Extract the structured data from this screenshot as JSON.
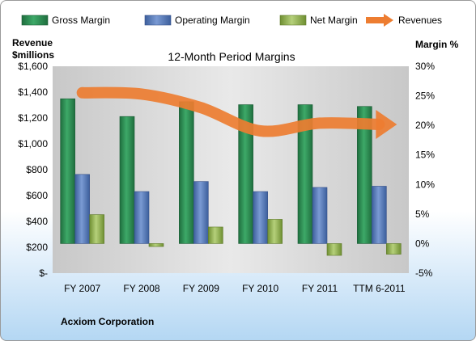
{
  "company": "Acxiom Corporation",
  "chart_data": {
    "type": "bar",
    "title": "12-Month Period Margins",
    "ylabel_left": "Revenue $millions",
    "ylabel_right": "Margin %",
    "categories": [
      "FY 2007",
      "FY 2008",
      "FY 2009",
      "FY 2010",
      "FY 2011",
      "TTM 6-2011"
    ],
    "left_axis": {
      "min": 0,
      "max": 1600,
      "step": 200,
      "tick_labels": [
        "$-",
        "$200",
        "$400",
        "$600",
        "$800",
        "$1,000",
        "$1,200",
        "$1,400",
        "$1,600"
      ]
    },
    "right_axis": {
      "min": -5,
      "max": 30,
      "step": 5,
      "tick_labels": [
        "-5%",
        "0%",
        "5%",
        "10%",
        "15%",
        "20%",
        "25%",
        "30%"
      ]
    },
    "series": [
      {
        "name": "Gross Margin",
        "axis": "right",
        "color": "#2e8b57",
        "values": [
          24.5,
          21.5,
          24,
          23.5,
          23.5,
          23.2
        ]
      },
      {
        "name": "Operating Margin",
        "axis": "right",
        "color": "#5b7fbf",
        "values": [
          11.7,
          8.8,
          10.5,
          8.8,
          9.5,
          9.7
        ]
      },
      {
        "name": "Net Margin",
        "axis": "right",
        "color": "#9bbb59",
        "values": [
          4.9,
          -0.5,
          2.8,
          4.1,
          -2.0,
          -1.8
        ]
      },
      {
        "name": "Revenues",
        "axis": "left",
        "color": "#ed7d31",
        "type": "line",
        "values": [
          1395,
          1385,
          1280,
          1100,
          1160,
          1150
        ]
      }
    ],
    "grid": false,
    "legend": "top"
  }
}
